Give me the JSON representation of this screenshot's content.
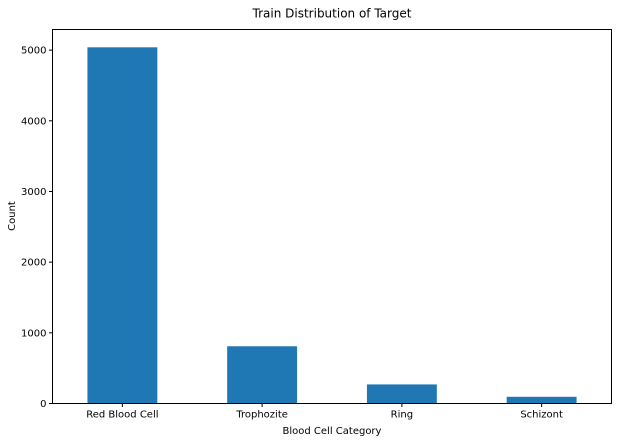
{
  "chart_data": {
    "type": "bar",
    "title": "Train Distribution of Target",
    "xlabel": "Blood Cell Category",
    "ylabel": "Count",
    "categories": [
      "Red Blood Cell",
      "Trophozite",
      "Ring",
      "Schizont"
    ],
    "values": [
      5040,
      810,
      270,
      95
    ],
    "ylim": [
      0,
      5292
    ],
    "yticks": [
      0,
      1000,
      2000,
      3000,
      4000,
      5000
    ],
    "ytick_labels": [
      "0",
      "1000",
      "2000",
      "3000",
      "4000",
      "5000"
    ],
    "bar_color": "#1f77b4",
    "grid": false,
    "legend": false
  }
}
